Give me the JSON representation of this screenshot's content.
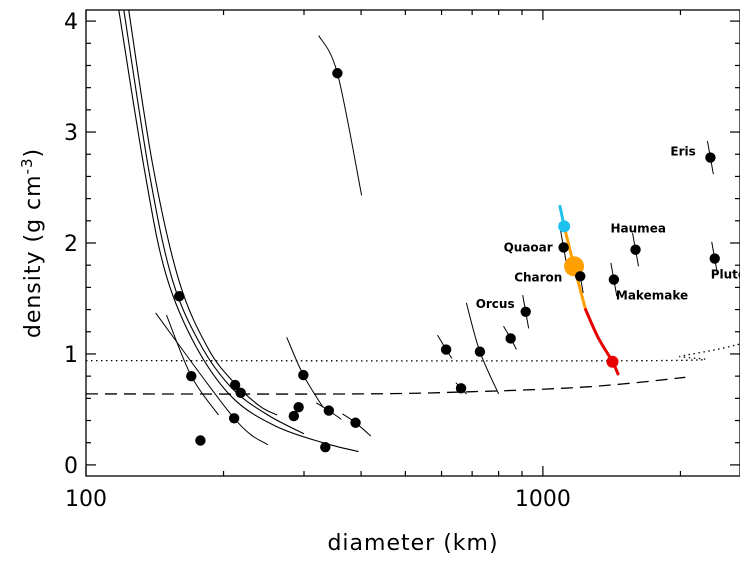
{
  "chart_data": {
    "type": "scatter",
    "title": "",
    "xlabel": "diameter (km)",
    "ylabel": "density (g cm",
    "ylabel_sup": "-3",
    "ylabel_close": ")",
    "xscale": "log",
    "xlim": [
      100,
      2700
    ],
    "ylim": [
      -0.1,
      4.1
    ],
    "grid": false,
    "x_ticks": [
      {
        "value": 100,
        "label": "100"
      },
      {
        "value": 1000,
        "label": "1000"
      }
    ],
    "y_ticks": [
      {
        "value": 0,
        "label": "0"
      },
      {
        "value": 1,
        "label": "1"
      },
      {
        "value": 2,
        "label": "2"
      },
      {
        "value": 3,
        "label": "3"
      },
      {
        "value": 4,
        "label": "4"
      }
    ],
    "named_objects": [
      {
        "label": "Eris",
        "x": 2326,
        "y": 2.77,
        "dx": -40,
        "dy": -2
      },
      {
        "label": "Haumea",
        "x": 1595,
        "y": 1.94,
        "dx": -25,
        "dy": -17
      },
      {
        "label": "Quaoar",
        "x": 1110,
        "y": 1.96,
        "dx": -60,
        "dy": 4
      },
      {
        "label": "Charon",
        "x": 1207,
        "y": 1.7,
        "dx": -66,
        "dy": 5
      },
      {
        "label": "Pluto",
        "x": 2377,
        "y": 1.86,
        "dx": -4,
        "dy": 20
      },
      {
        "label": "Makemake",
        "x": 1430,
        "y": 1.67,
        "dx": 2,
        "dy": 20
      },
      {
        "label": "Orcus",
        "x": 917,
        "y": 1.38,
        "dx": -50,
        "dy": -4
      }
    ],
    "unnamed_points": [
      {
        "x": 355,
        "y": 3.53,
        "curve": [
          [
            323,
            3.87
          ],
          [
            401,
            2.43
          ]
        ]
      },
      {
        "x": 160,
        "y": 1.52
      },
      {
        "x": 170,
        "y": 0.8,
        "curve": [
          [
            150,
            1.35
          ],
          [
            195,
            0.45
          ]
        ]
      },
      {
        "x": 178,
        "y": 0.22
      },
      {
        "x": 212,
        "y": 0.72
      },
      {
        "x": 211,
        "y": 0.42,
        "curve": [
          [
            142,
            1.37
          ],
          [
            250,
            0.18
          ]
        ]
      },
      {
        "x": 218,
        "y": 0.65
      },
      {
        "x": 292,
        "y": 0.52
      },
      {
        "x": 285,
        "y": 0.44
      },
      {
        "x": 299,
        "y": 0.81,
        "curve": [
          [
            275,
            1.15
          ],
          [
            330,
            0.52
          ]
        ]
      },
      {
        "x": 340,
        "y": 0.49,
        "curve": [
          [
            319,
            0.56
          ],
          [
            362,
            0.41
          ]
        ]
      },
      {
        "x": 334,
        "y": 0.16
      },
      {
        "x": 389,
        "y": 0.38,
        "curve": [
          [
            364,
            0.46
          ],
          [
            420,
            0.26
          ]
        ]
      },
      {
        "x": 614,
        "y": 1.04,
        "curve": [
          [
            588,
            1.17
          ],
          [
            632,
            0.96
          ]
        ]
      },
      {
        "x": 728,
        "y": 1.02,
        "curve": [
          [
            680,
            1.46
          ],
          [
            800,
            0.64
          ]
        ]
      },
      {
        "x": 662,
        "y": 0.69,
        "curve": [
          [
            645,
            0.74
          ],
          [
            680,
            0.64
          ]
        ]
      },
      {
        "x": 850,
        "y": 1.14,
        "curve": [
          [
            820,
            1.25
          ],
          [
            875,
            1.04
          ]
        ]
      }
    ],
    "left_curves": [
      [
        [
          118,
          4.1
        ],
        [
          135,
          2.6
        ],
        [
          150,
          1.7
        ],
        [
          175,
          1.05
        ],
        [
          210,
          0.6
        ],
        [
          260,
          0.35
        ],
        [
          330,
          0.2
        ],
        [
          395,
          0.12
        ]
      ],
      [
        [
          121,
          4.1
        ],
        [
          138,
          2.6
        ],
        [
          155,
          1.65
        ],
        [
          180,
          1.05
        ],
        [
          210,
          0.68
        ],
        [
          250,
          0.45
        ],
        [
          300,
          0.28
        ]
      ],
      [
        [
          124,
          4.1
        ],
        [
          140,
          2.7
        ],
        [
          160,
          1.65
        ],
        [
          185,
          1.05
        ],
        [
          210,
          0.75
        ],
        [
          240,
          0.53
        ],
        [
          262,
          0.45
        ]
      ]
    ],
    "series": [
      {
        "name": "",
        "style": "dotted",
        "points": [
          [
            100,
            0.94
          ],
          [
            1780,
            0.94
          ],
          [
            2000,
            0.98
          ],
          [
            2400,
            1.04
          ],
          [
            2700,
            1.09
          ]
        ]
      },
      {
        "name": "",
        "style": "dashed",
        "points": [
          [
            100,
            0.64
          ],
          [
            400,
            0.64
          ],
          [
            700,
            0.66
          ],
          [
            1100,
            0.69
          ],
          [
            1500,
            0.73
          ],
          [
            2050,
            0.79
          ]
        ]
      }
    ],
    "track": {
      "segments": [
        {
          "color": "#1ec0ee",
          "points": [
            [
              1090,
              2.33
            ],
            [
              1113,
              2.15
            ]
          ]
        },
        {
          "color": "#ffa000",
          "points": [
            [
              1113,
              2.15
            ],
            [
              1170,
              1.79
            ],
            [
              1240,
              1.4
            ]
          ]
        },
        {
          "color": "#e80000",
          "points": [
            [
              1240,
              1.4
            ],
            [
              1320,
              1.15
            ],
            [
              1420,
              0.93
            ],
            [
              1460,
              0.82
            ]
          ]
        }
      ],
      "markers": [
        {
          "x": 1113,
          "y": 2.15,
          "color": "#1ec0ee",
          "size": 6
        },
        {
          "x": 1170,
          "y": 1.79,
          "color": "#ffa000",
          "size": 10
        },
        {
          "x": 1420,
          "y": 0.93,
          "color": "#e80000",
          "size": 6
        }
      ]
    }
  }
}
